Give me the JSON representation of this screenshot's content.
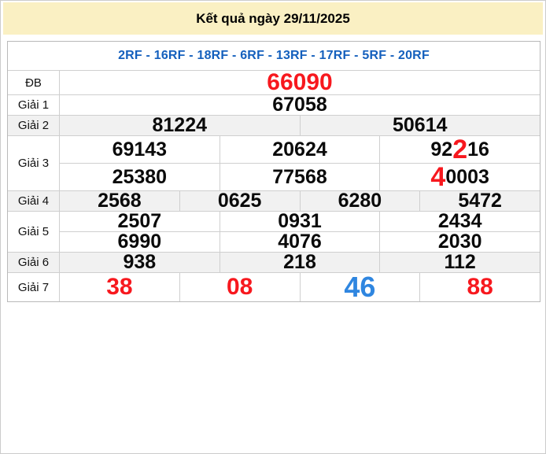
{
  "title": "Kết quả ngày 29/11/2025",
  "station_line": "2RF - 16RF - 18RF - 6RF - 13RF - 17RF - 5RF - 20RF",
  "colors": {
    "header_bg": "#FAF0C3",
    "alt_row_bg": "#F1F1F1",
    "border": "#CFCFCF",
    "blue": "#1560BD",
    "light_blue": "#2F86E0",
    "red": "#F7181E"
  },
  "prizes": [
    {
      "label": "ĐB",
      "rows": [
        [
          [
            {
              "t": "66090",
              "color": "red",
              "size": "xl"
            }
          ]
        ]
      ]
    },
    {
      "label": "Giải 1",
      "rows": [
        [
          [
            {
              "t": "67058"
            }
          ]
        ]
      ]
    },
    {
      "label": "Giải 2",
      "alt": true,
      "rows": [
        [
          [
            {
              "t": "81224"
            }
          ],
          [
            {
              "t": "50614"
            }
          ]
        ]
      ]
    },
    {
      "label": "Giải 3",
      "rows": [
        [
          [
            {
              "t": "69143"
            }
          ],
          [
            {
              "t": "20624"
            }
          ],
          [
            {
              "t": "92"
            },
            {
              "t": "2",
              "color": "red",
              "size": "big"
            },
            {
              "t": "16"
            }
          ]
        ],
        [
          [
            {
              "t": "25380"
            }
          ],
          [
            {
              "t": "77568"
            }
          ],
          [
            {
              "t": "4",
              "color": "red",
              "size": "big"
            },
            {
              "t": "0003"
            }
          ]
        ]
      ]
    },
    {
      "label": "Giải 4",
      "alt": true,
      "rows": [
        [
          [
            {
              "t": "2568"
            }
          ],
          [
            {
              "t": "0625"
            }
          ],
          [
            {
              "t": "6280"
            }
          ],
          [
            {
              "t": "5472"
            }
          ]
        ]
      ]
    },
    {
      "label": "Giải 5",
      "rows": [
        [
          [
            {
              "t": "2507"
            }
          ],
          [
            {
              "t": "0931"
            }
          ],
          [
            {
              "t": "2434"
            }
          ]
        ],
        [
          [
            {
              "t": "6990"
            }
          ],
          [
            {
              "t": "4076"
            }
          ],
          [
            {
              "t": "2030"
            }
          ]
        ]
      ]
    },
    {
      "label": "Giải 6",
      "alt": true,
      "rows": [
        [
          [
            {
              "t": "938"
            }
          ],
          [
            {
              "t": "218"
            }
          ],
          [
            {
              "t": "112"
            }
          ]
        ]
      ]
    },
    {
      "label": "Giải 7",
      "rows": [
        [
          [
            {
              "t": "38",
              "color": "red",
              "size": "g7"
            }
          ],
          [
            {
              "t": "08",
              "color": "red",
              "size": "g7"
            }
          ],
          [
            {
              "t": "46",
              "color": "lightblue",
              "size": "g7big"
            }
          ],
          [
            {
              "t": "88",
              "color": "red",
              "size": "g7"
            }
          ]
        ]
      ]
    }
  ]
}
